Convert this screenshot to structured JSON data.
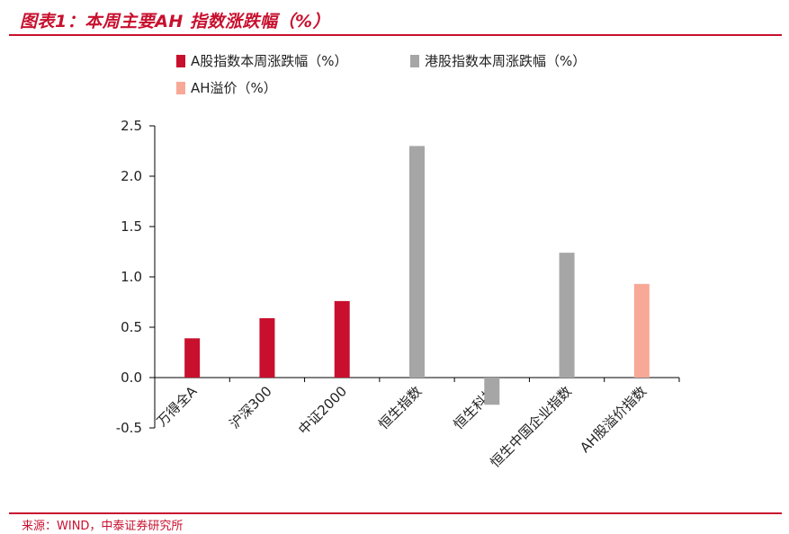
{
  "figure": {
    "title": "图表1：本周主要AH 指数涨跌幅（%）",
    "source": "来源：WIND，中泰证券研究所"
  },
  "chart_data": {
    "type": "bar",
    "title": "",
    "xlabel": "",
    "ylabel": "",
    "ylim": [
      -0.5,
      2.5
    ],
    "yticks": [
      "2.5",
      "2.0",
      "1.5",
      "1.0",
      "0.5",
      "0.0",
      "-0.5"
    ],
    "ytick_values": [
      2.5,
      2.0,
      1.5,
      1.0,
      0.5,
      0.0,
      -0.5
    ],
    "grid": false,
    "legend_position": "top-left",
    "categories": [
      "万得全A",
      "沪深300",
      "中证2000",
      "恒生指数",
      "恒生科技",
      "恒生中国企业指数",
      "AH股溢价指数"
    ],
    "series": [
      {
        "name": "A股指数本周涨跌幅（%）",
        "color": "#c8102e",
        "values": [
          0.39,
          0.59,
          0.76,
          null,
          null,
          null,
          null
        ]
      },
      {
        "name": "港股指数本周涨跌幅（%）",
        "color": "#a6a6a6",
        "values": [
          null,
          null,
          null,
          2.3,
          -0.27,
          1.24,
          null
        ]
      },
      {
        "name": "AH溢价（%）",
        "color": "#f8a897",
        "values": [
          null,
          null,
          null,
          null,
          null,
          null,
          0.93
        ]
      }
    ]
  }
}
